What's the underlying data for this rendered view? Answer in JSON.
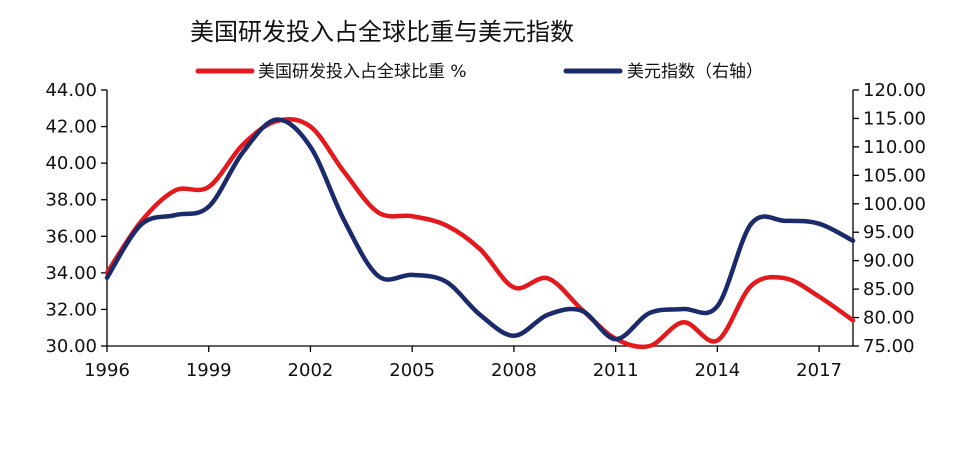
{
  "chart_data": {
    "type": "line",
    "title": "美国研发投入占全球比重与美元指数",
    "x": [
      1996,
      1997,
      1998,
      1999,
      2000,
      2001,
      2002,
      2003,
      2004,
      2005,
      2006,
      2007,
      2008,
      2009,
      2010,
      2011,
      2012,
      2013,
      2014,
      2015,
      2016,
      2017,
      2018
    ],
    "x_tick_labels": [
      "1996",
      "1999",
      "2002",
      "2005",
      "2008",
      "2011",
      "2014",
      "2017"
    ],
    "xlim": [
      1996,
      2018
    ],
    "series": [
      {
        "name": "美国研发投入占全球比重 %",
        "axis": "left",
        "color": "#e4191d",
        "values": [
          34.0,
          36.8,
          38.5,
          38.7,
          41.0,
          42.3,
          42.0,
          39.5,
          37.3,
          37.1,
          36.6,
          35.3,
          33.2,
          33.7,
          32.0,
          30.4,
          30.0,
          31.3,
          30.3,
          33.3,
          33.7,
          32.7,
          31.4
        ]
      },
      {
        "name": "美元指数（右轴）",
        "axis": "right",
        "color": "#1b2a6b",
        "values": [
          87.0,
          96.3,
          98.0,
          99.5,
          109.0,
          114.8,
          110.0,
          97.0,
          87.3,
          87.5,
          86.3,
          80.5,
          76.8,
          80.5,
          81.2,
          76.2,
          80.8,
          81.5,
          82.0,
          96.5,
          97.0,
          96.5,
          93.5
        ]
      }
    ],
    "y_left": {
      "ylim": [
        30,
        44
      ],
      "ticks": [
        "30.00",
        "32.00",
        "34.00",
        "36.00",
        "38.00",
        "40.00",
        "42.00",
        "44.00"
      ]
    },
    "y_right": {
      "ylim": [
        75,
        120
      ],
      "ticks": [
        "75.00",
        "80.00",
        "85.00",
        "90.00",
        "95.00",
        "100.00",
        "105.00",
        "110.00",
        "115.00",
        "120.00"
      ]
    },
    "grid": false,
    "legend_placement": "top"
  }
}
